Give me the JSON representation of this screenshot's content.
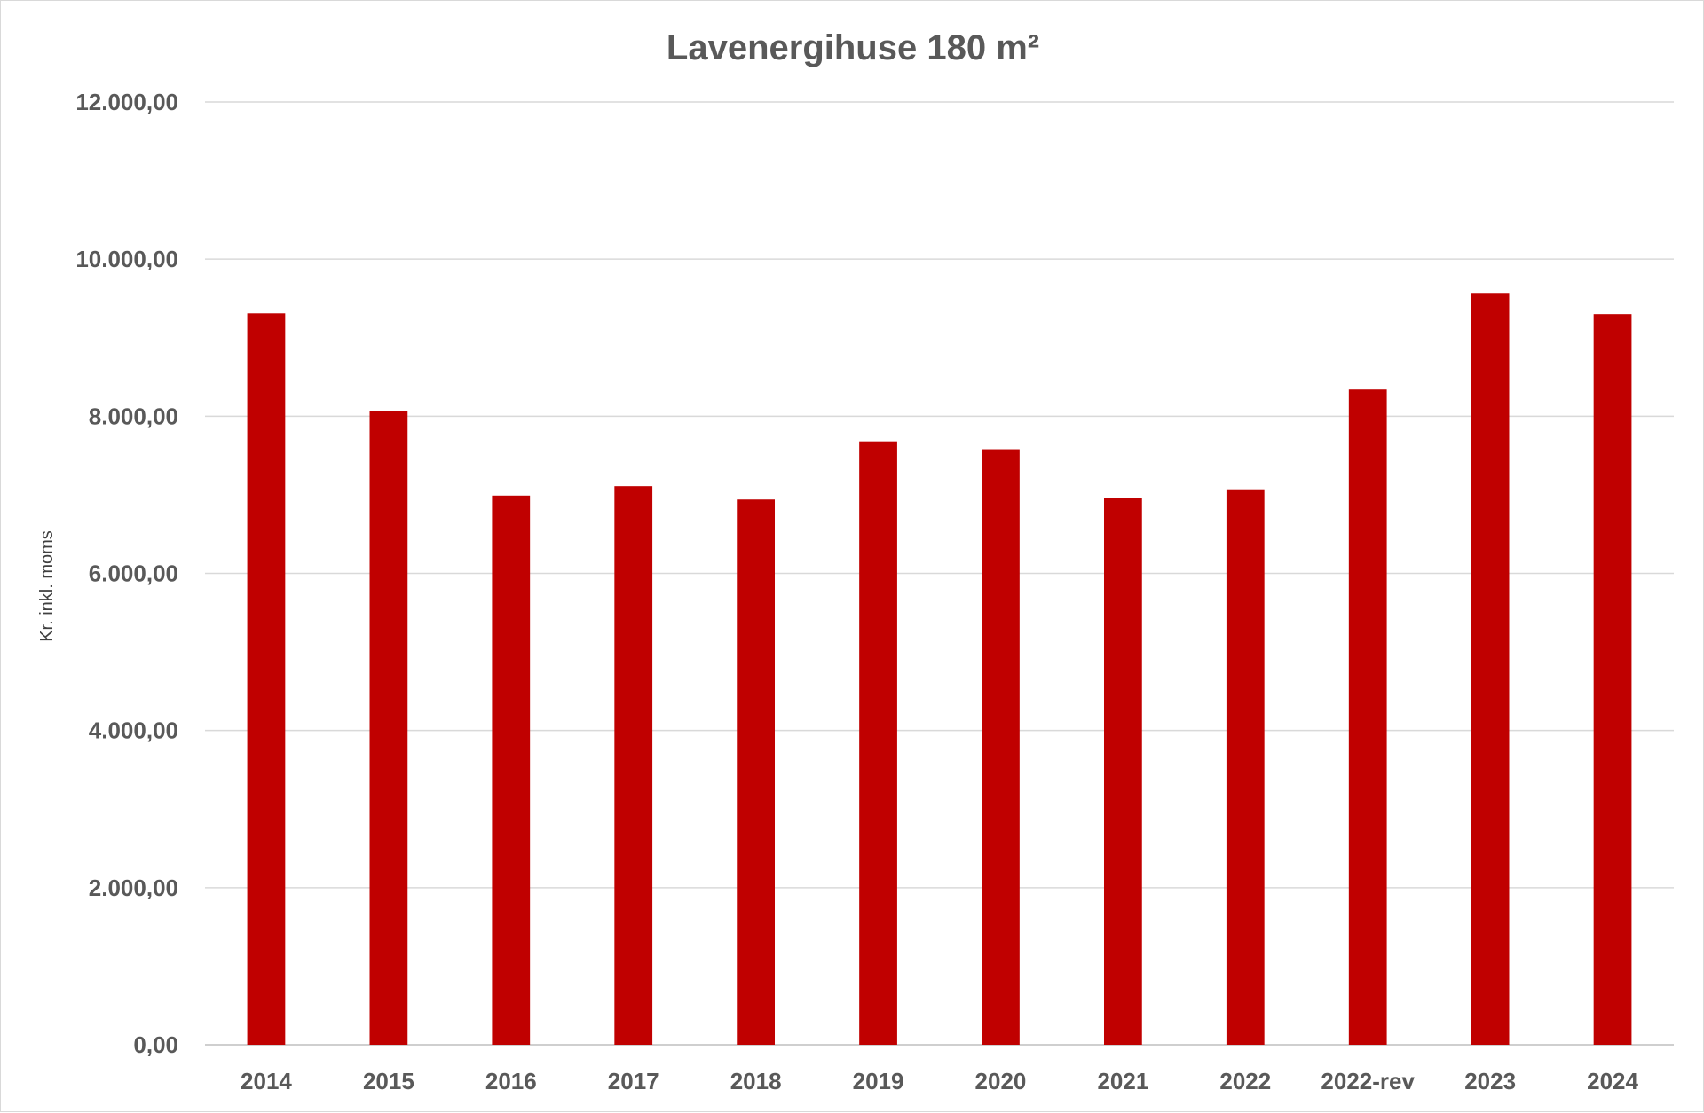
{
  "chart_data": {
    "type": "bar",
    "title": "Lavenergihuse 180 m²",
    "xlabel": "",
    "ylabel": "Kr. inkl. moms",
    "ylim": [
      0,
      12000
    ],
    "ytick_values": [
      0,
      2000,
      4000,
      6000,
      8000,
      10000,
      12000
    ],
    "ytick_labels": [
      "0,00",
      "2.000,00",
      "4.000,00",
      "6.000,00",
      "8.000,00",
      "10.000,00",
      "12.000,00"
    ],
    "categories": [
      "2014",
      "2015",
      "2016",
      "2017",
      "2018",
      "2019",
      "2020",
      "2021",
      "2022",
      "2022-rev",
      "2023",
      "2024"
    ],
    "values": [
      9310,
      8070,
      6990,
      7110,
      6940,
      7680,
      7580,
      6960,
      7070,
      8340,
      9570,
      9300
    ],
    "grid": true,
    "legend": "none",
    "bar_color": "#c00000"
  }
}
